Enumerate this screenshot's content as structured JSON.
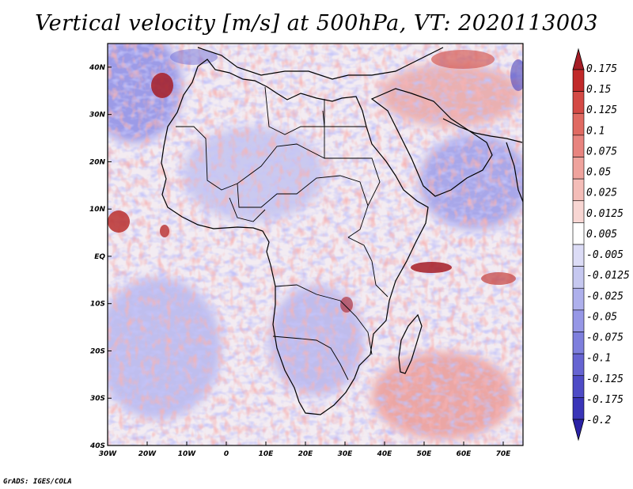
{
  "title": "Vertical velocity [m/s] at 500hPa, VT: 2020113003",
  "footer": "GrADS: IGES/COLA",
  "map": {
    "lon_range": [
      -30,
      75
    ],
    "lat_range": [
      -40,
      45
    ],
    "lon_ticks": [
      {
        "lon": -30,
        "label": "30W"
      },
      {
        "lon": -20,
        "label": "20W"
      },
      {
        "lon": -10,
        "label": "10W"
      },
      {
        "lon": 0,
        "label": "0"
      },
      {
        "lon": 10,
        "label": "10E"
      },
      {
        "lon": 20,
        "label": "20E"
      },
      {
        "lon": 30,
        "label": "30E"
      },
      {
        "lon": 40,
        "label": "40E"
      },
      {
        "lon": 50,
        "label": "50E"
      },
      {
        "lon": 60,
        "label": "60E"
      },
      {
        "lon": 70,
        "label": "70E"
      }
    ],
    "lat_ticks": [
      {
        "lat": 40,
        "label": "40N"
      },
      {
        "lat": 30,
        "label": "30N"
      },
      {
        "lat": 20,
        "label": "20N"
      },
      {
        "lat": 10,
        "label": "10N"
      },
      {
        "lat": 0,
        "label": "EQ"
      },
      {
        "lat": -10,
        "label": "10S"
      },
      {
        "lat": -20,
        "label": "20S"
      },
      {
        "lat": -30,
        "label": "30S"
      },
      {
        "lat": -40,
        "label": "40S"
      }
    ],
    "field_colors": {
      "strong_up": "#a51d26",
      "up": "#e8847f",
      "weak_up": "#f6c7c3",
      "neutral": "#ffffff",
      "weak_down": "#c6c8f0",
      "down": "#8e8ee6",
      "strong_down": "#3a35b8"
    }
  },
  "colorbar": {
    "labels": [
      "0.175",
      "0.15",
      "0.125",
      "0.1",
      "0.075",
      "0.05",
      "0.025",
      "0.0125",
      "0.005",
      "-0.005",
      "-0.0125",
      "-0.025",
      "-0.05",
      "-0.075",
      "-0.1",
      "-0.125",
      "-0.175",
      "-0.2"
    ],
    "colors": [
      "#a51d26",
      "#c12a2a",
      "#d44a45",
      "#e06a62",
      "#e8847f",
      "#efa39d",
      "#f4bdb8",
      "#f8d6d3",
      "#ffffff",
      "#dcdcf6",
      "#c6c8f0",
      "#aeb0ec",
      "#9697e6",
      "#7e7fdd",
      "#6664d2",
      "#4e4bc6",
      "#3a35b8",
      "#2a22a6"
    ]
  }
}
